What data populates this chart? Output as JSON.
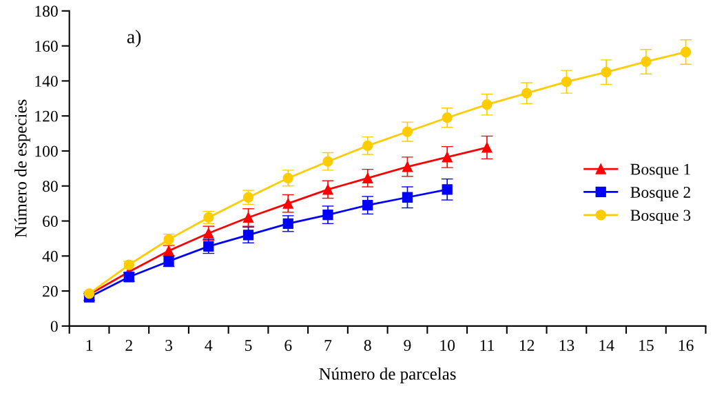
{
  "chart_data": {
    "type": "line",
    "xlabel": "Número de parcelas",
    "ylabel": "Número de especies",
    "annotations": [
      "a)"
    ],
    "categories": [
      "1",
      "2",
      "3",
      "4",
      "5",
      "6",
      "7",
      "8",
      "9",
      "10",
      "11",
      "12",
      "13",
      "14",
      "15",
      "16"
    ],
    "series": [
      {
        "name": "Bosque 1",
        "color": "#ff0000",
        "marker": "triangle",
        "values": [
          18,
          31,
          43,
          53,
          62,
          70,
          78,
          84.5,
          91,
          96.5,
          102,
          null,
          null,
          null,
          null,
          null
        ],
        "errors": [
          null,
          null,
          3,
          4,
          5,
          5,
          5,
          5,
          5.5,
          6,
          6.5,
          null,
          null,
          null,
          null,
          null
        ]
      },
      {
        "name": "Bosque 2",
        "color": "#0000ff",
        "marker": "square",
        "values": [
          16.5,
          28,
          37,
          45.5,
          52,
          58.5,
          63.5,
          69,
          73.5,
          78,
          null,
          null,
          null,
          null,
          null,
          null
        ],
        "errors": [
          2,
          2.5,
          3,
          4,
          4.5,
          4.5,
          5,
          5,
          6,
          6,
          null,
          null,
          null,
          null,
          null,
          null
        ]
      },
      {
        "name": "Bosque 3",
        "color": "#ffcc00",
        "marker": "circle",
        "values": [
          18.5,
          35,
          49.5,
          62,
          73.5,
          84.5,
          94,
          103,
          111,
          119,
          126.5,
          133,
          139.5,
          145,
          151,
          156.5
        ],
        "errors": [
          1,
          2,
          3,
          3.5,
          4,
          4.5,
          5,
          5,
          5.5,
          5.5,
          6,
          6,
          6.5,
          7,
          7,
          7
        ]
      }
    ],
    "ylim": [
      0,
      180
    ],
    "yticks": [
      0,
      20,
      40,
      60,
      80,
      100,
      120,
      140,
      160,
      180
    ],
    "grid": false,
    "legend": "right",
    "line_style": "solid"
  }
}
